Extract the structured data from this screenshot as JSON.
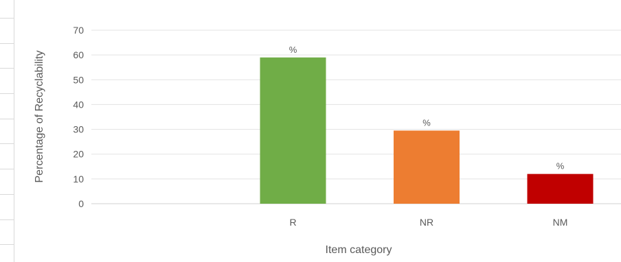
{
  "chart_data": {
    "type": "bar",
    "categories": [
      "",
      "R",
      "NR",
      "NM"
    ],
    "values": [
      null,
      59,
      29.5,
      12
    ],
    "data_labels": [
      "",
      "%",
      "%",
      "%"
    ],
    "colors": [
      "#70ad47",
      "#70ad47",
      "#ed7d31",
      "#c00000"
    ],
    "title": "",
    "xlabel": "Item category",
    "ylabel": "Percentage of Recyclability",
    "ylim": [
      0,
      70
    ],
    "yticks": [
      0,
      10,
      20,
      30,
      40,
      50,
      60,
      70
    ],
    "grid": true,
    "legend": "none"
  }
}
